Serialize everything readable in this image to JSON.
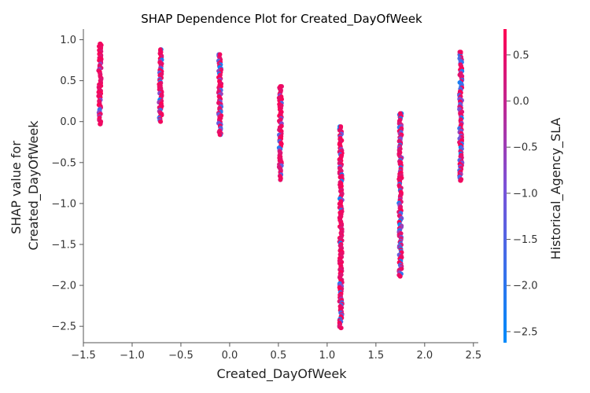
{
  "chart_data": {
    "type": "scatter",
    "title": "SHAP Dependence Plot for Created_DayOfWeek",
    "xlabel": "Created_DayOfWeek",
    "ylabel_lines": [
      "SHAP value for",
      "Created_DayOfWeek"
    ],
    "colorbar_label": "Historical_Agency_SLA",
    "xlim": [
      -1.5,
      2.55
    ],
    "ylim": [
      -2.7,
      1.13
    ],
    "xticks": [
      -1.5,
      -1.0,
      -0.5,
      0.0,
      0.5,
      1.0,
      1.5,
      2.0,
      2.5
    ],
    "xtick_labels": [
      "−1.5",
      "−1.0",
      "−0.5",
      "0.0",
      "0.5",
      "1.0",
      "1.5",
      "2.0",
      "2.5"
    ],
    "yticks": [
      1.0,
      0.5,
      0.0,
      -0.5,
      -1.0,
      -1.5,
      -2.0,
      -2.5
    ],
    "ytick_labels": [
      "1.0",
      "0.5",
      "0.0",
      "−0.5",
      "−1.0",
      "−1.5",
      "−2.0",
      "−2.5"
    ],
    "colorbar_range": [
      -2.62,
      0.78
    ],
    "colorbar_ticks": [
      0.5,
      0.0,
      -0.5,
      -1.0,
      -1.5,
      -2.0,
      -2.5
    ],
    "colorbar_tick_labels": [
      "0.5",
      "0.0",
      "−0.5",
      "−1.0",
      "−1.5",
      "−2.0",
      "−2.5"
    ],
    "colormap_stops": [
      "#008bfb",
      "#7c52d8",
      "#ff0052"
    ],
    "groups": [
      {
        "x": -1.33,
        "y_min": -0.03,
        "y_max": 0.95,
        "color_mix": "mostly-pink",
        "blue_fraction": 0.15
      },
      {
        "x": -0.71,
        "y_min": 0.0,
        "y_max": 0.88,
        "color_mix": "mostly-pink",
        "blue_fraction": 0.2
      },
      {
        "x": -0.1,
        "y_min": -0.16,
        "y_max": 0.82,
        "color_mix": "mixed",
        "blue_fraction": 0.35
      },
      {
        "x": 0.52,
        "y_min": -0.71,
        "y_max": 0.43,
        "color_mix": "mostly-pink",
        "blue_fraction": 0.15
      },
      {
        "x": 1.14,
        "y_min": -2.52,
        "y_max": -0.06,
        "color_mix": "mostly-pink",
        "blue_fraction": 0.2
      },
      {
        "x": 1.75,
        "y_min": -1.89,
        "y_max": 0.1,
        "color_mix": "mixed",
        "blue_fraction": 0.35
      },
      {
        "x": 2.37,
        "y_min": -0.72,
        "y_max": 0.85,
        "color_mix": "mixed",
        "blue_fraction": 0.4
      }
    ]
  }
}
